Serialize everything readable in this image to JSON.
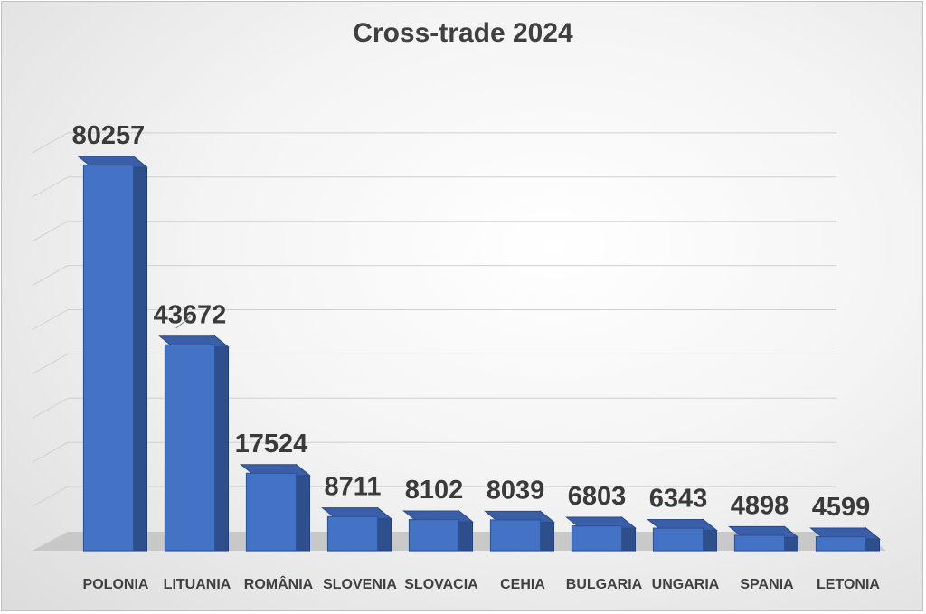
{
  "chart_data": {
    "type": "bar",
    "title": "Cross-trade 2024",
    "categories": [
      "POLONIA",
      "LITUANIA",
      "ROMÂNIA",
      "SLOVENIA",
      "SLOVACIA",
      "CEHIA",
      "BULGARIA",
      "UNGARIA",
      "SPANIA",
      "LETONIA"
    ],
    "values": [
      80257,
      43672,
      17524,
      8711,
      8102,
      8039,
      6803,
      6343,
      4898,
      4599
    ],
    "xlabel": "",
    "ylabel": "",
    "ylim": [
      0,
      90000
    ],
    "grid": true,
    "legend": "none",
    "bar_color": "#4472c4",
    "data_labels": [
      "80257",
      "43672",
      "17524",
      "8711",
      "8102",
      "8039",
      "6803",
      "6343",
      "4898",
      "4599"
    ]
  }
}
